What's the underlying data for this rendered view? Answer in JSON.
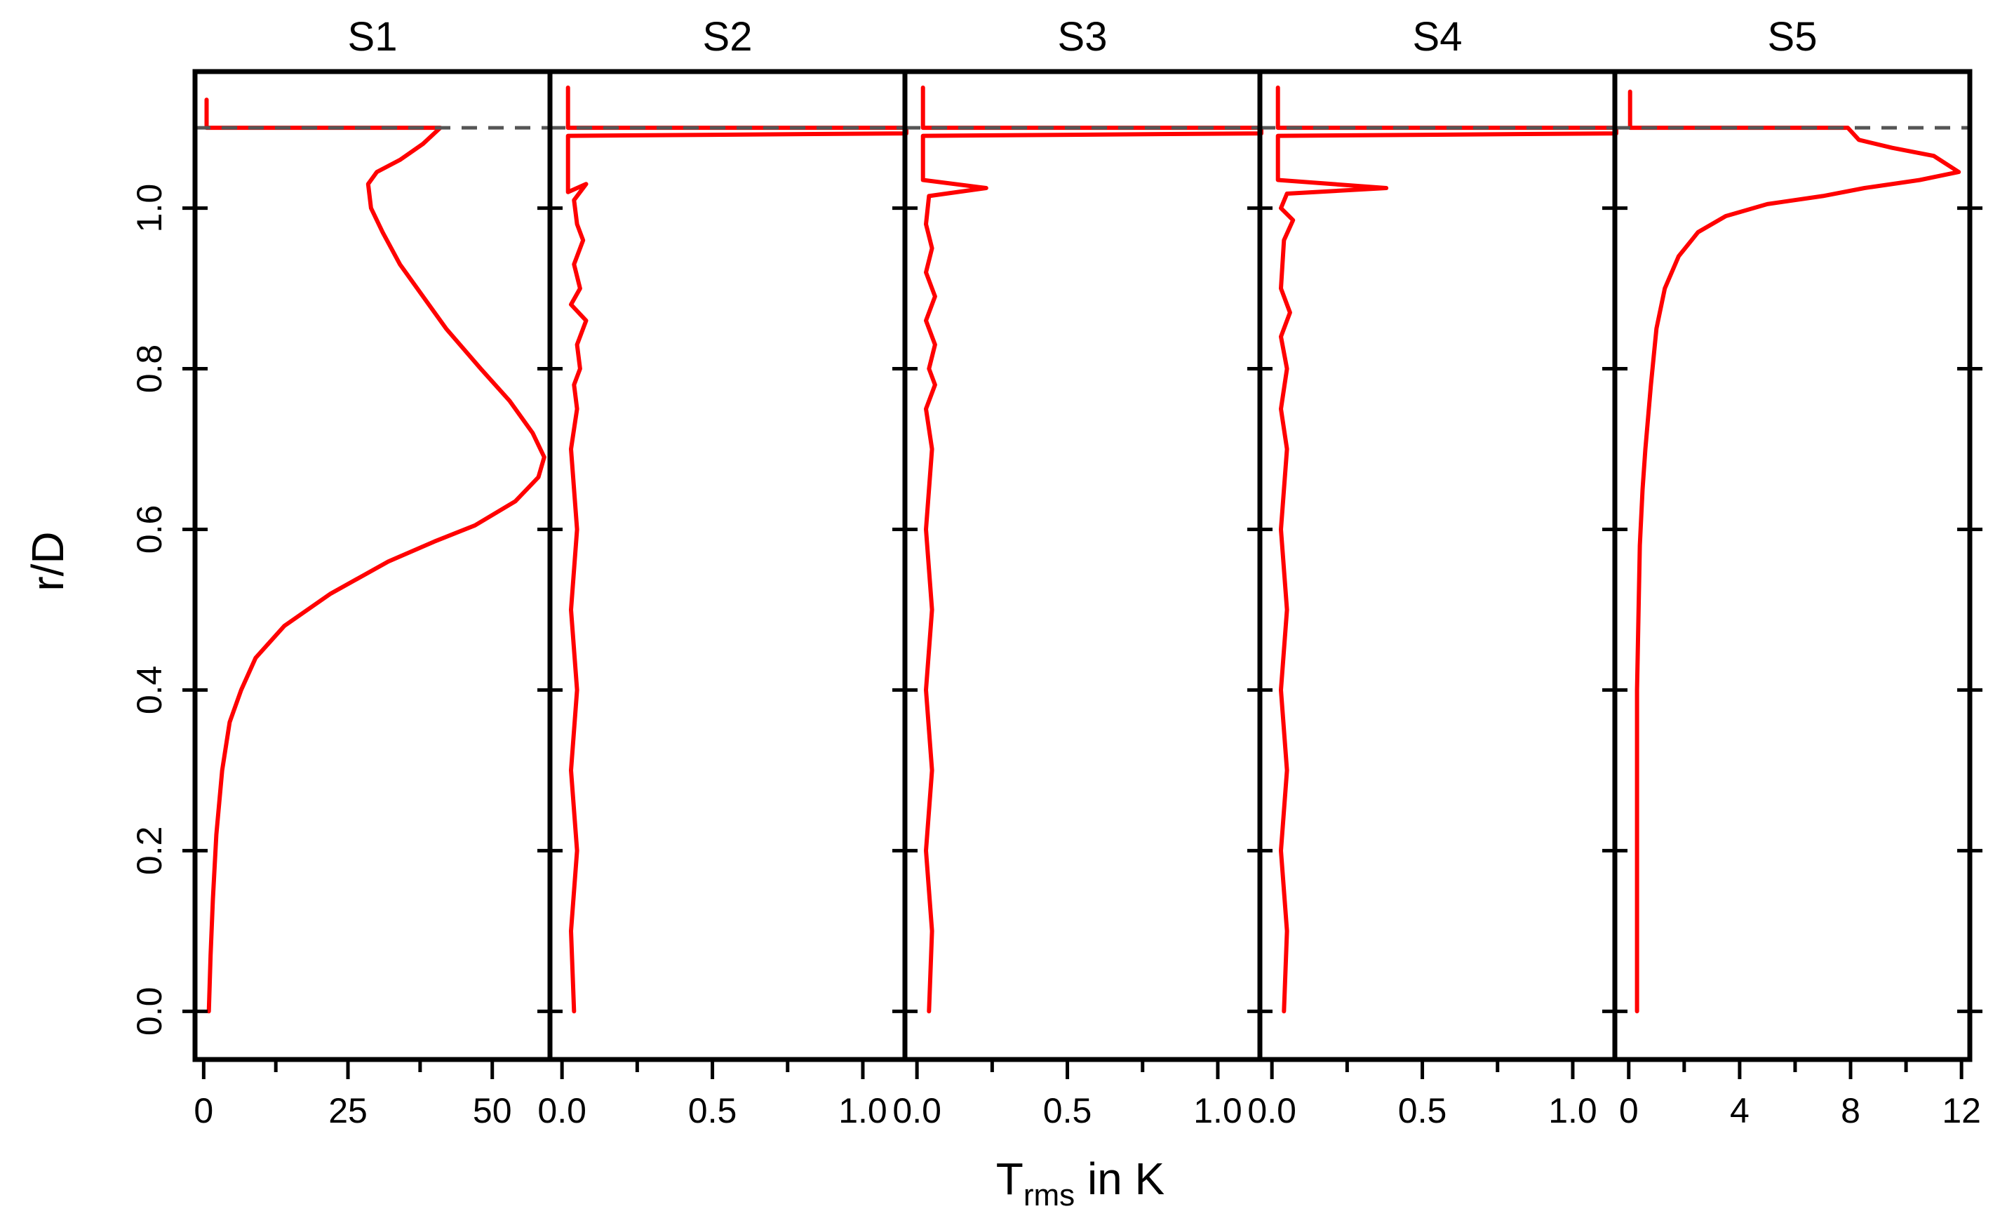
{
  "chart_data": {
    "type": "line",
    "ylabel": "r/D",
    "xlabel": {
      "main": "T",
      "sub": "rms",
      "rest": " in K"
    },
    "ylim": [
      -0.06,
      1.17
    ],
    "yticks": [
      0.0,
      0.2,
      0.4,
      0.6,
      0.8,
      1.0
    ],
    "ytick_labels": [
      "0.0",
      "0.2",
      "0.4",
      "0.6",
      "0.8",
      "1.0"
    ],
    "reference_line": {
      "y": 1.1,
      "style": "dashed",
      "color": "#555555"
    },
    "line_color": "#ff0000",
    "panels": [
      {
        "title": "S1",
        "xlim": [
          -1.5,
          60
        ],
        "xticks": [
          0,
          25,
          50
        ],
        "xtick_labels": [
          "0",
          "25",
          "50"
        ],
        "minor_xticks": [
          12.5,
          37.5
        ],
        "profile": [
          [
            0.5,
            1.135
          ],
          [
            0.5,
            1.1
          ],
          [
            41,
            1.1
          ],
          [
            38,
            1.08
          ],
          [
            34,
            1.06
          ],
          [
            30,
            1.045
          ],
          [
            28.5,
            1.03
          ],
          [
            29,
            1.0
          ],
          [
            31,
            0.97
          ],
          [
            34,
            0.93
          ],
          [
            38,
            0.89
          ],
          [
            42,
            0.85
          ],
          [
            48,
            0.8
          ],
          [
            53,
            0.76
          ],
          [
            57,
            0.72
          ],
          [
            59,
            0.69
          ],
          [
            58,
            0.665
          ],
          [
            54,
            0.635
          ],
          [
            47,
            0.605
          ],
          [
            40,
            0.585
          ],
          [
            32,
            0.56
          ],
          [
            22,
            0.52
          ],
          [
            14,
            0.48
          ],
          [
            9,
            0.44
          ],
          [
            6.5,
            0.4
          ],
          [
            4.5,
            0.36
          ],
          [
            3.2,
            0.3
          ],
          [
            2.2,
            0.22
          ],
          [
            1.6,
            0.14
          ],
          [
            1.2,
            0.07
          ],
          [
            0.9,
            0.0
          ]
        ]
      },
      {
        "title": "S2",
        "xlim": [
          -0.04,
          1.14
        ],
        "xticks": [
          0.0,
          0.5,
          1.0
        ],
        "xtick_labels": [
          "0.0",
          "0.5",
          "1.0"
        ],
        "minor_xticks": [
          0.25,
          0.75
        ],
        "profile": [
          [
            0.02,
            1.15
          ],
          [
            0.02,
            1.1
          ],
          [
            1.2,
            1.1
          ],
          [
            1.2,
            1.093
          ],
          [
            0.02,
            1.09
          ],
          [
            0.02,
            1.02
          ],
          [
            0.08,
            1.03
          ],
          [
            0.04,
            1.01
          ],
          [
            0.05,
            0.98
          ],
          [
            0.07,
            0.96
          ],
          [
            0.04,
            0.93
          ],
          [
            0.06,
            0.9
          ],
          [
            0.03,
            0.88
          ],
          [
            0.08,
            0.86
          ],
          [
            0.05,
            0.83
          ],
          [
            0.06,
            0.8
          ],
          [
            0.04,
            0.78
          ],
          [
            0.05,
            0.75
          ],
          [
            0.03,
            0.7
          ],
          [
            0.05,
            0.6
          ],
          [
            0.03,
            0.5
          ],
          [
            0.05,
            0.4
          ],
          [
            0.03,
            0.3
          ],
          [
            0.05,
            0.2
          ],
          [
            0.03,
            0.1
          ],
          [
            0.04,
            0.0
          ]
        ]
      },
      {
        "title": "S3",
        "xlim": [
          -0.04,
          1.14
        ],
        "xticks": [
          0.0,
          0.5,
          1.0
        ],
        "xtick_labels": [
          "0.0",
          "0.5",
          "1.0"
        ],
        "minor_xticks": [
          0.25,
          0.75
        ],
        "profile": [
          [
            0.02,
            1.15
          ],
          [
            0.02,
            1.1
          ],
          [
            1.2,
            1.1
          ],
          [
            1.2,
            1.093
          ],
          [
            0.02,
            1.09
          ],
          [
            0.02,
            1.035
          ],
          [
            0.23,
            1.025
          ],
          [
            0.04,
            1.015
          ],
          [
            0.03,
            0.98
          ],
          [
            0.05,
            0.95
          ],
          [
            0.03,
            0.92
          ],
          [
            0.06,
            0.89
          ],
          [
            0.03,
            0.86
          ],
          [
            0.06,
            0.83
          ],
          [
            0.04,
            0.8
          ],
          [
            0.06,
            0.78
          ],
          [
            0.03,
            0.75
          ],
          [
            0.05,
            0.7
          ],
          [
            0.03,
            0.6
          ],
          [
            0.05,
            0.5
          ],
          [
            0.03,
            0.4
          ],
          [
            0.05,
            0.3
          ],
          [
            0.03,
            0.2
          ],
          [
            0.05,
            0.1
          ],
          [
            0.04,
            0.0
          ]
        ]
      },
      {
        "title": "S4",
        "xlim": [
          -0.04,
          1.14
        ],
        "xticks": [
          0.0,
          0.5,
          1.0
        ],
        "xtick_labels": [
          "0.0",
          "0.5",
          "1.0"
        ],
        "minor_xticks": [
          0.25,
          0.75
        ],
        "profile": [
          [
            0.02,
            1.15
          ],
          [
            0.02,
            1.1
          ],
          [
            1.2,
            1.1
          ],
          [
            1.2,
            1.093
          ],
          [
            0.02,
            1.09
          ],
          [
            0.02,
            1.035
          ],
          [
            0.38,
            1.025
          ],
          [
            0.05,
            1.018
          ],
          [
            0.03,
            1.0
          ],
          [
            0.07,
            0.985
          ],
          [
            0.04,
            0.96
          ],
          [
            0.03,
            0.9
          ],
          [
            0.06,
            0.87
          ],
          [
            0.03,
            0.84
          ],
          [
            0.05,
            0.8
          ],
          [
            0.03,
            0.75
          ],
          [
            0.05,
            0.7
          ],
          [
            0.03,
            0.6
          ],
          [
            0.05,
            0.5
          ],
          [
            0.03,
            0.4
          ],
          [
            0.05,
            0.3
          ],
          [
            0.03,
            0.2
          ],
          [
            0.05,
            0.1
          ],
          [
            0.04,
            0.0
          ]
        ]
      },
      {
        "title": "S5",
        "xlim": [
          -0.5,
          12.3
        ],
        "xticks": [
          0,
          4,
          8,
          12
        ],
        "xtick_labels": [
          "0",
          "4",
          "8",
          "12"
        ],
        "minor_xticks": [
          2,
          6,
          10
        ],
        "profile": [
          [
            0.05,
            1.145
          ],
          [
            0.05,
            1.1
          ],
          [
            7.9,
            1.1
          ],
          [
            8.3,
            1.085
          ],
          [
            9.5,
            1.075
          ],
          [
            11,
            1.065
          ],
          [
            11.9,
            1.045
          ],
          [
            10.5,
            1.035
          ],
          [
            8.5,
            1.025
          ],
          [
            7,
            1.015
          ],
          [
            5,
            1.005
          ],
          [
            3.5,
            0.99
          ],
          [
            2.5,
            0.97
          ],
          [
            1.8,
            0.94
          ],
          [
            1.3,
            0.9
          ],
          [
            1,
            0.85
          ],
          [
            0.8,
            0.78
          ],
          [
            0.6,
            0.7
          ],
          [
            0.5,
            0.65
          ],
          [
            0.4,
            0.58
          ],
          [
            0.3,
            0.4
          ],
          [
            0.3,
            0.2
          ],
          [
            0.3,
            0.0
          ]
        ]
      }
    ]
  }
}
